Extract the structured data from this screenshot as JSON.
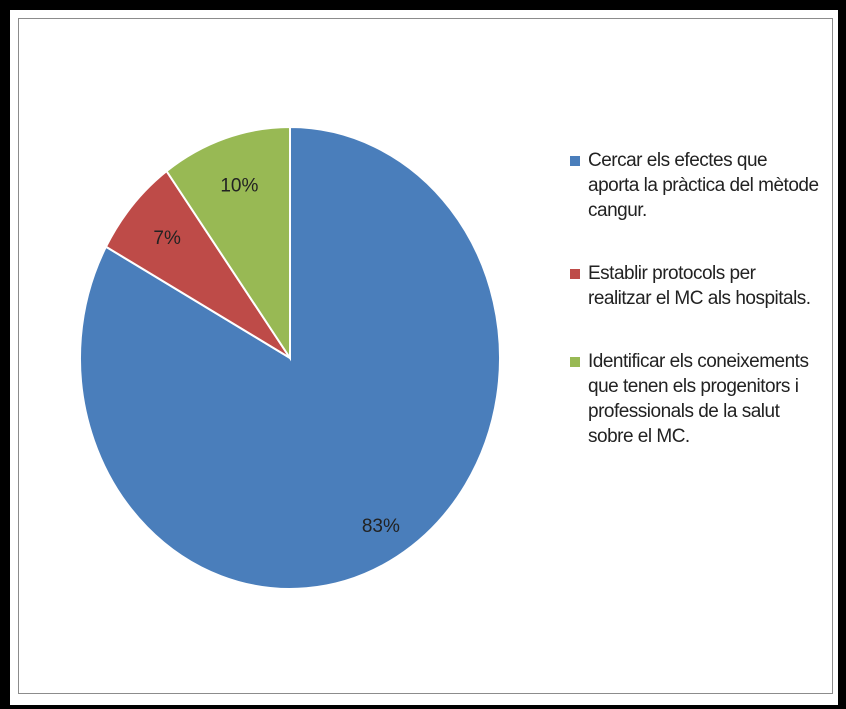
{
  "chart_data": {
    "type": "pie",
    "categories": [
      "Cercar els efectes que aporta la pràctica del mètode cangur.",
      "Establir protocols per realitzar el MC als hospitals.",
      "Identificar els coneixements que tenen els progenitors i professionals de la salut sobre el MC."
    ],
    "values": [
      83,
      7,
      10
    ],
    "value_labels": [
      "83%",
      "7%",
      "10%"
    ],
    "colors": [
      "#4a7ebb",
      "#be4b48",
      "#98b954"
    ]
  }
}
